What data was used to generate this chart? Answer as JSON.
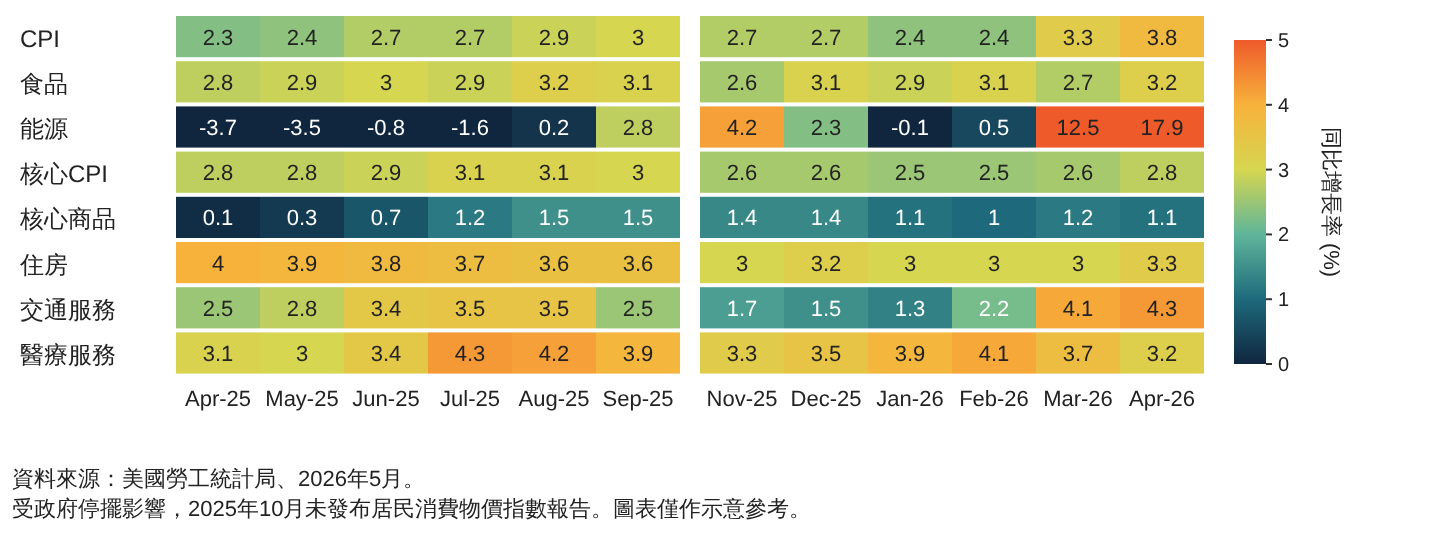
{
  "chart_data": {
    "type": "heatmap",
    "categories": [
      "Apr-25",
      "May-25",
      "Jun-25",
      "Jul-25",
      "Aug-25",
      "Sep-25",
      null,
      "Nov-25",
      "Dec-25",
      "Jan-26",
      "Feb-26",
      "Mar-26",
      "Apr-26"
    ],
    "y_categories": [
      "CPI",
      "食品",
      "能源",
      "核心CPI",
      "核心商品",
      "住房",
      "交通服務",
      "醫療服務"
    ],
    "cells": [
      [
        2.3,
        2.4,
        2.7,
        2.7,
        2.9,
        3,
        null,
        2.7,
        2.7,
        2.4,
        2.4,
        3.3,
        3.8
      ],
      [
        2.8,
        2.9,
        3,
        2.9,
        3.2,
        3.1,
        null,
        2.6,
        3.1,
        2.9,
        3.1,
        2.7,
        3.2
      ],
      [
        -3.7,
        -3.5,
        -0.8,
        -1.6,
        0.2,
        2.8,
        null,
        4.2,
        2.3,
        -0.1,
        0.5,
        12.5,
        17.9
      ],
      [
        2.8,
        2.8,
        2.9,
        3.1,
        3.1,
        3,
        null,
        2.6,
        2.6,
        2.5,
        2.5,
        2.6,
        2.8
      ],
      [
        0.1,
        0.3,
        0.7,
        1.2,
        1.5,
        1.5,
        null,
        1.4,
        1.4,
        1.1,
        1,
        1.2,
        1.1
      ],
      [
        4,
        3.9,
        3.8,
        3.7,
        3.6,
        3.6,
        null,
        3,
        3.2,
        3,
        3,
        3,
        3.3
      ],
      [
        2.5,
        2.8,
        3.4,
        3.5,
        3.5,
        2.5,
        null,
        1.7,
        1.5,
        1.3,
        2.2,
        4.1,
        4.3
      ],
      [
        3.1,
        3,
        3.4,
        4.3,
        4.2,
        3.9,
        null,
        3.3,
        3.5,
        3.9,
        4.1,
        3.7,
        3.2
      ]
    ],
    "data_labels": true,
    "clim": [
      0,
      5
    ],
    "cticks": [
      0,
      1,
      2,
      3,
      4,
      5
    ],
    "clabel": "同比增長率 (%)",
    "annotations": [
      "資料來源：美國勞工統計局、2026年5月。",
      "受政府停擺影響，2025年10月未發布居民消費物價指數報告。圖表僅作示意參考。"
    ]
  }
}
